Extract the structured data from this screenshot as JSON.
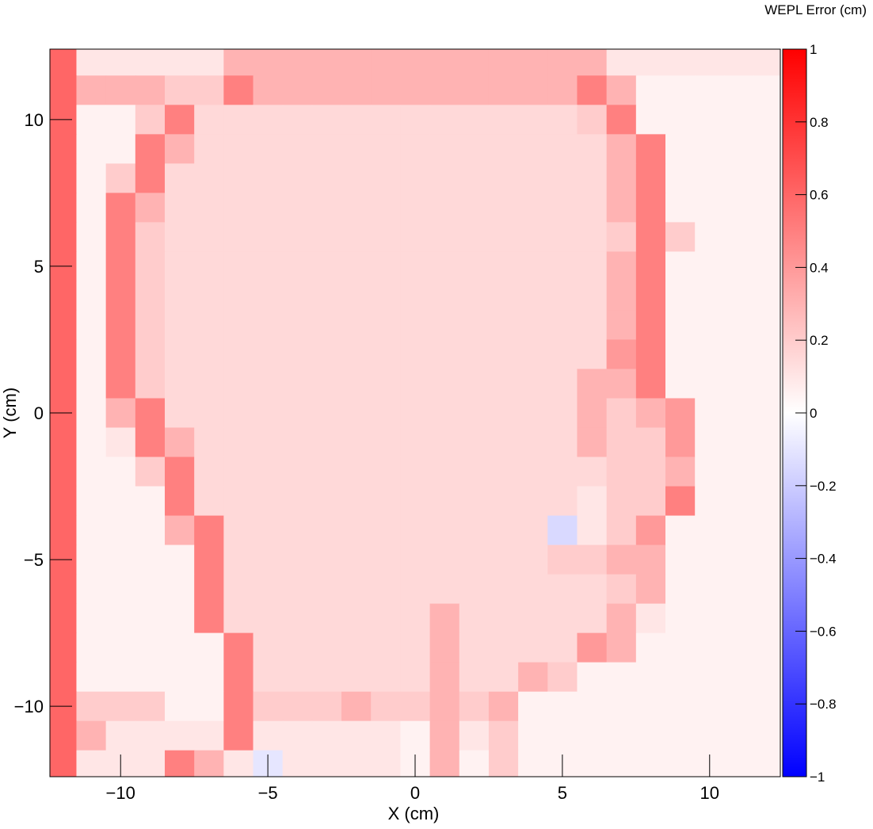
{
  "chart_data": {
    "type": "heatmap",
    "x_label": "X (cm)",
    "y_label": "Y (cm)",
    "colorbar_label": "WEPL Error (cm)",
    "xlim": [
      -12.4,
      12.4
    ],
    "ylim": [
      -12.4,
      12.4
    ],
    "zlim": [
      -1,
      1
    ],
    "xticks": [
      {
        "value": -10,
        "label": "−10"
      },
      {
        "value": -5,
        "label": "−5"
      },
      0,
      5,
      10
    ],
    "yticks": [
      {
        "value": -10,
        "label": "−10"
      },
      {
        "value": -5,
        "label": "−5"
      },
      0,
      5,
      10
    ],
    "zticks": [
      {
        "value": -1,
        "label": "−1"
      },
      {
        "value": -0.8,
        "label": "−0.8"
      },
      {
        "value": -0.6,
        "label": "−0.6"
      },
      {
        "value": -0.4,
        "label": "−0.4"
      },
      {
        "value": -0.2,
        "label": "−0.2"
      },
      0,
      0.2,
      0.4,
      0.6,
      0.8,
      1
    ],
    "colors": {
      "low": "#0000ff",
      "mid": "#ffffff",
      "high": "#ff0000"
    },
    "x": [
      -12,
      -11,
      -10,
      -9,
      -8,
      -7,
      -6,
      -5,
      -4,
      -3,
      -2,
      -1,
      0,
      1,
      2,
      3,
      4,
      5,
      6,
      7,
      8,
      9,
      10,
      11,
      12
    ],
    "y": [
      12,
      11,
      10,
      9,
      8,
      7,
      6,
      5,
      4,
      3,
      2,
      1,
      0,
      -1,
      -2,
      -3,
      -4,
      -5,
      -6,
      -7,
      -8,
      -9,
      -10,
      -11,
      -12
    ],
    "z": [
      [
        0.6,
        0.1,
        0.1,
        0.1,
        0.1,
        0.1,
        0.3,
        0.3,
        0.3,
        0.3,
        0.3,
        0.3,
        0.3,
        0.3,
        0.3,
        0.3,
        0.3,
        0.3,
        0.3,
        0.1,
        0.1,
        0.1,
        0.1,
        0.1,
        0.1
      ],
      [
        0.6,
        0.3,
        0.3,
        0.3,
        0.2,
        0.2,
        0.5,
        0.3,
        0.3,
        0.3,
        0.3,
        0.3,
        0.3,
        0.3,
        0.3,
        0.3,
        0.3,
        0.3,
        0.5,
        0.3,
        0.05,
        0.05,
        0.05,
        0.05,
        0.05
      ],
      [
        0.6,
        0.05,
        0.05,
        0.2,
        0.5,
        0.15,
        0.15,
        0.15,
        0.15,
        0.15,
        0.15,
        0.15,
        0.15,
        0.15,
        0.15,
        0.15,
        0.15,
        0.15,
        0.2,
        0.5,
        0.05,
        0.05,
        0.05,
        0.05,
        0.05
      ],
      [
        0.6,
        0.05,
        0.05,
        0.5,
        0.3,
        0.15,
        0.15,
        0.15,
        0.15,
        0.15,
        0.15,
        0.15,
        0.15,
        0.15,
        0.15,
        0.15,
        0.15,
        0.15,
        0.15,
        0.3,
        0.5,
        0.05,
        0.05,
        0.05,
        0.05
      ],
      [
        0.6,
        0.05,
        0.2,
        0.5,
        0.15,
        0.15,
        0.15,
        0.15,
        0.15,
        0.15,
        0.15,
        0.15,
        0.15,
        0.15,
        0.15,
        0.15,
        0.15,
        0.15,
        0.15,
        0.3,
        0.5,
        0.05,
        0.05,
        0.05,
        0.05
      ],
      [
        0.6,
        0.05,
        0.5,
        0.3,
        0.15,
        0.15,
        0.15,
        0.15,
        0.15,
        0.15,
        0.15,
        0.15,
        0.15,
        0.15,
        0.15,
        0.15,
        0.15,
        0.15,
        0.15,
        0.3,
        0.5,
        0.05,
        0.05,
        0.05,
        0.05
      ],
      [
        0.6,
        0.05,
        0.5,
        0.2,
        0.15,
        0.15,
        0.15,
        0.15,
        0.15,
        0.15,
        0.15,
        0.15,
        0.15,
        0.15,
        0.15,
        0.15,
        0.15,
        0.15,
        0.15,
        0.2,
        0.5,
        0.2,
        0.05,
        0.05,
        0.05
      ],
      [
        0.6,
        0.05,
        0.5,
        0.2,
        0.15,
        0.15,
        0.15,
        0.15,
        0.15,
        0.15,
        0.15,
        0.15,
        0.15,
        0.15,
        0.15,
        0.15,
        0.15,
        0.15,
        0.15,
        0.3,
        0.5,
        0.05,
        0.05,
        0.05,
        0.05
      ],
      [
        0.6,
        0.05,
        0.5,
        0.2,
        0.15,
        0.15,
        0.15,
        0.15,
        0.15,
        0.15,
        0.15,
        0.15,
        0.15,
        0.15,
        0.15,
        0.15,
        0.15,
        0.15,
        0.15,
        0.3,
        0.5,
        0.05,
        0.05,
        0.05,
        0.05
      ],
      [
        0.6,
        0.05,
        0.5,
        0.2,
        0.15,
        0.15,
        0.15,
        0.15,
        0.15,
        0.15,
        0.15,
        0.15,
        0.15,
        0.15,
        0.15,
        0.15,
        0.15,
        0.15,
        0.15,
        0.3,
        0.5,
        0.05,
        0.05,
        0.05,
        0.05
      ],
      [
        0.6,
        0.05,
        0.5,
        0.2,
        0.15,
        0.15,
        0.15,
        0.15,
        0.15,
        0.15,
        0.15,
        0.15,
        0.15,
        0.15,
        0.15,
        0.15,
        0.15,
        0.15,
        0.15,
        0.4,
        0.5,
        0.05,
        0.05,
        0.05,
        0.05
      ],
      [
        0.6,
        0.05,
        0.5,
        0.2,
        0.15,
        0.15,
        0.15,
        0.15,
        0.15,
        0.15,
        0.15,
        0.15,
        0.15,
        0.15,
        0.15,
        0.15,
        0.15,
        0.15,
        0.3,
        0.3,
        0.5,
        0.05,
        0.05,
        0.05,
        0.05
      ],
      [
        0.6,
        0.05,
        0.3,
        0.5,
        0.15,
        0.15,
        0.15,
        0.15,
        0.15,
        0.15,
        0.15,
        0.15,
        0.15,
        0.15,
        0.15,
        0.15,
        0.15,
        0.15,
        0.3,
        0.2,
        0.3,
        0.4,
        0.05,
        0.05,
        0.05
      ],
      [
        0.6,
        0.05,
        0.1,
        0.5,
        0.3,
        0.15,
        0.15,
        0.15,
        0.15,
        0.15,
        0.15,
        0.15,
        0.15,
        0.15,
        0.15,
        0.15,
        0.15,
        0.15,
        0.3,
        0.2,
        0.2,
        0.4,
        0.05,
        0.05,
        0.05
      ],
      [
        0.6,
        0.05,
        0.05,
        0.2,
        0.5,
        0.15,
        0.15,
        0.15,
        0.15,
        0.15,
        0.15,
        0.15,
        0.15,
        0.15,
        0.15,
        0.15,
        0.15,
        0.15,
        0.15,
        0.2,
        0.2,
        0.3,
        0.05,
        0.05,
        0.05
      ],
      [
        0.6,
        0.05,
        0.05,
        0.05,
        0.5,
        0.15,
        0.15,
        0.15,
        0.15,
        0.15,
        0.15,
        0.15,
        0.15,
        0.15,
        0.15,
        0.15,
        0.15,
        0.15,
        0.1,
        0.2,
        0.2,
        0.5,
        0.05,
        0.05,
        0.05
      ],
      [
        0.6,
        0.05,
        0.05,
        0.05,
        0.3,
        0.5,
        0.15,
        0.15,
        0.15,
        0.15,
        0.15,
        0.15,
        0.15,
        0.15,
        0.15,
        0.15,
        0.15,
        -0.15,
        0.1,
        0.2,
        0.4,
        0.05,
        0.05,
        0.05,
        0.05
      ],
      [
        0.6,
        0.05,
        0.05,
        0.05,
        0.05,
        0.5,
        0.15,
        0.15,
        0.15,
        0.15,
        0.15,
        0.15,
        0.15,
        0.15,
        0.15,
        0.15,
        0.15,
        0.2,
        0.2,
        0.3,
        0.3,
        0.05,
        0.05,
        0.05,
        0.05
      ],
      [
        0.6,
        0.05,
        0.05,
        0.05,
        0.05,
        0.5,
        0.15,
        0.15,
        0.15,
        0.15,
        0.15,
        0.15,
        0.15,
        0.15,
        0.15,
        0.15,
        0.15,
        0.15,
        0.15,
        0.2,
        0.3,
        0.05,
        0.05,
        0.05,
        0.05
      ],
      [
        0.6,
        0.05,
        0.05,
        0.05,
        0.05,
        0.5,
        0.15,
        0.15,
        0.15,
        0.15,
        0.15,
        0.15,
        0.15,
        0.3,
        0.15,
        0.15,
        0.15,
        0.15,
        0.15,
        0.3,
        0.1,
        0.05,
        0.05,
        0.05,
        0.05
      ],
      [
        0.6,
        0.05,
        0.05,
        0.05,
        0.05,
        0.05,
        0.5,
        0.15,
        0.15,
        0.15,
        0.15,
        0.15,
        0.15,
        0.3,
        0.15,
        0.15,
        0.15,
        0.15,
        0.4,
        0.3,
        0.05,
        0.05,
        0.05,
        0.05,
        0.05
      ],
      [
        0.6,
        0.05,
        0.05,
        0.05,
        0.05,
        0.05,
        0.5,
        0.15,
        0.15,
        0.15,
        0.15,
        0.15,
        0.15,
        0.3,
        0.15,
        0.15,
        0.3,
        0.2,
        0.05,
        0.05,
        0.05,
        0.05,
        0.05,
        0.05,
        0.05
      ],
      [
        0.6,
        0.2,
        0.2,
        0.2,
        0.05,
        0.05,
        0.5,
        0.2,
        0.2,
        0.2,
        0.3,
        0.2,
        0.2,
        0.3,
        0.2,
        0.3,
        0.05,
        0.05,
        0.05,
        0.05,
        0.05,
        0.05,
        0.05,
        0.05,
        0.05
      ],
      [
        0.6,
        0.3,
        0.1,
        0.1,
        0.1,
        0.1,
        0.5,
        0.1,
        0.1,
        0.1,
        0.1,
        0.1,
        0.05,
        0.3,
        0.1,
        0.2,
        0.05,
        0.05,
        0.05,
        0.05,
        0.05,
        0.05,
        0.05,
        0.05,
        0.05
      ],
      [
        0.6,
        0.1,
        0.1,
        0.1,
        0.5,
        0.3,
        0.1,
        -0.1,
        0.1,
        0.1,
        0.1,
        0.1,
        0.05,
        0.3,
        0.05,
        0.2,
        0.05,
        0.05,
        0.05,
        0.05,
        0.05,
        0.05,
        0.05,
        0.05,
        0.05
      ]
    ]
  }
}
